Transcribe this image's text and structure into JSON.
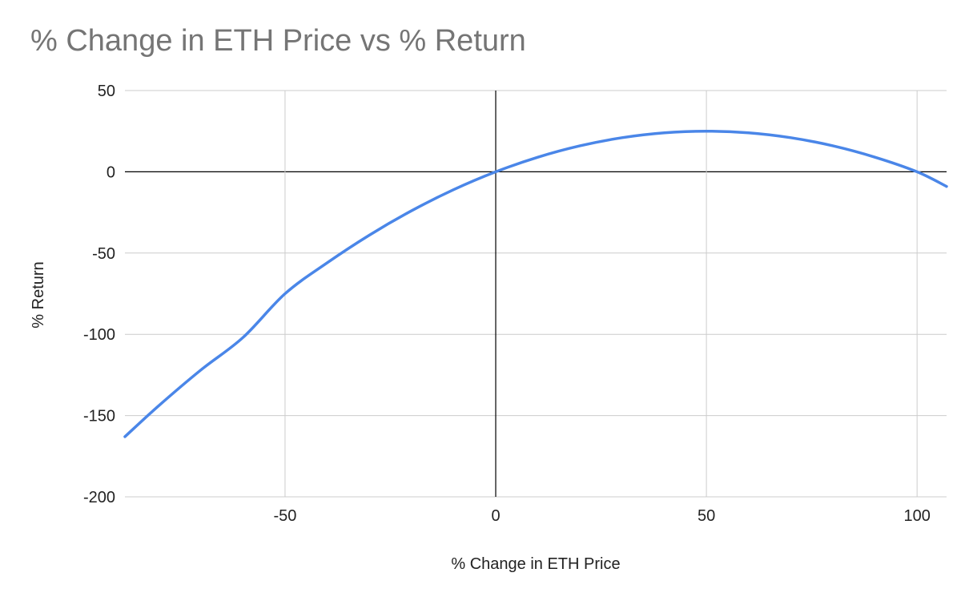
{
  "chart_data": {
    "type": "line",
    "title": "% Change in ETH Price vs % Return",
    "xlabel": "% Change in ETH Price",
    "ylabel": "% Return",
    "xlim": [
      -88,
      107
    ],
    "ylim": [
      -200,
      50
    ],
    "x_ticks": [
      -50,
      0,
      50,
      100
    ],
    "y_ticks": [
      50,
      0,
      -50,
      -100,
      -150,
      -200
    ],
    "x_tick_labels": [
      "-50",
      "0",
      "50",
      "100"
    ],
    "y_tick_labels": [
      "50",
      "0",
      "-50",
      "-100",
      "-150",
      "-200"
    ],
    "grid": true,
    "legend": "none",
    "colors": {
      "line": "#4a86e8",
      "grid": "#cccccc",
      "zero_axis": "#000000",
      "title": "#757575",
      "text": "#222222"
    },
    "series": [
      {
        "values_x": [
          -88,
          -80,
          -70,
          -60,
          -50,
          -40,
          -30,
          -20,
          -10,
          0,
          10,
          20,
          30,
          40,
          50,
          60,
          70,
          80,
          90,
          100,
          107
        ],
        "values_y": [
          -163,
          -144,
          -122,
          -102,
          -75,
          -56,
          -39,
          -24,
          -11,
          0,
          9,
          16,
          21,
          24,
          25,
          24,
          21,
          16,
          9,
          0,
          -9
        ]
      }
    ]
  }
}
